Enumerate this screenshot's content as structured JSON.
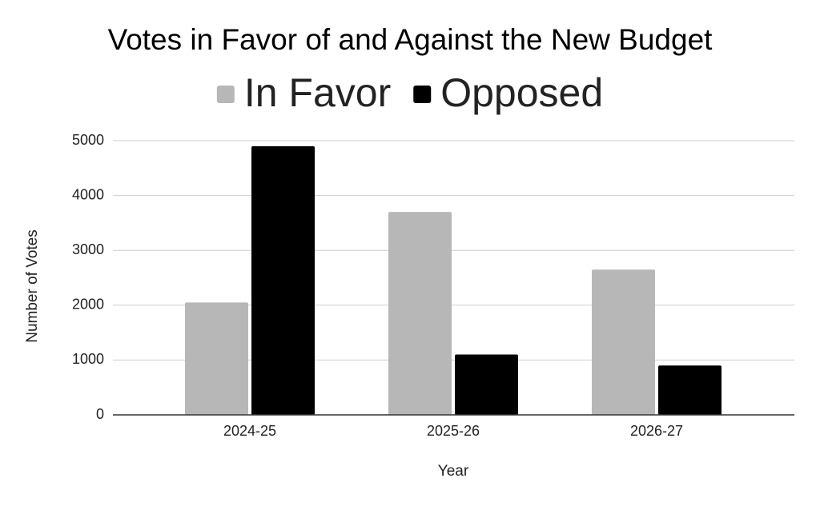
{
  "chart_data": {
    "type": "bar",
    "title": "Votes in Favor of and Against the New Budget",
    "x_label": "Year",
    "y_label": "Number of Votes",
    "categories": [
      "2024-25",
      "2025-26",
      "2026-27"
    ],
    "series": [
      {
        "name": "In Favor",
        "color": "#b7b7b7",
        "values": [
          2050,
          3700,
          2650
        ]
      },
      {
        "name": "Opposed",
        "color": "#000000",
        "values": [
          4900,
          1100,
          900
        ]
      }
    ],
    "ylim": [
      0,
      5000
    ],
    "yticks": [
      0,
      1000,
      2000,
      3000,
      4000,
      5000
    ],
    "grid": true,
    "legend": "top"
  }
}
